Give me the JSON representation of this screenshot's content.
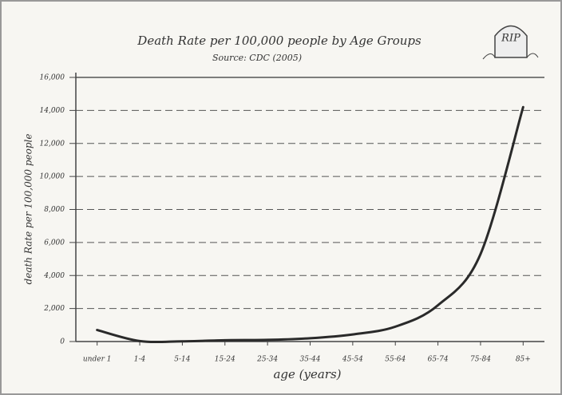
{
  "chart_data": {
    "type": "line",
    "title": "Death Rate per 100,000 people by Age Groups",
    "subtitle": "Source: CDC (2005)",
    "annotation": "RIP",
    "x_label": "age (years)",
    "y_label": "death Rate per 100,000 people",
    "categories": [
      "under 1",
      "1-4",
      "5-14",
      "15-24",
      "25-34",
      "35-44",
      "45-54",
      "55-64",
      "65-74",
      "75-84",
      "85+"
    ],
    "values": [
      700,
      30,
      15,
      80,
      100,
      200,
      430,
      900,
      2200,
      5300,
      14200
    ],
    "color": "#2a2a2a",
    "ylim": [
      0,
      16000
    ],
    "yticks": [
      0,
      {
        "value": 2000,
        "label": "2,000"
      },
      {
        "value": 4000,
        "label": "4,000"
      },
      {
        "value": 6000,
        "label": "6,000"
      },
      {
        "value": 8000,
        "label": "8,000"
      },
      {
        "value": 10000,
        "label": "10,000"
      },
      {
        "value": 12000,
        "label": "12,000"
      },
      {
        "value": 14000,
        "label": "14,000"
      },
      {
        "value": 16000,
        "label": "16,000"
      }
    ],
    "grid": true
  }
}
